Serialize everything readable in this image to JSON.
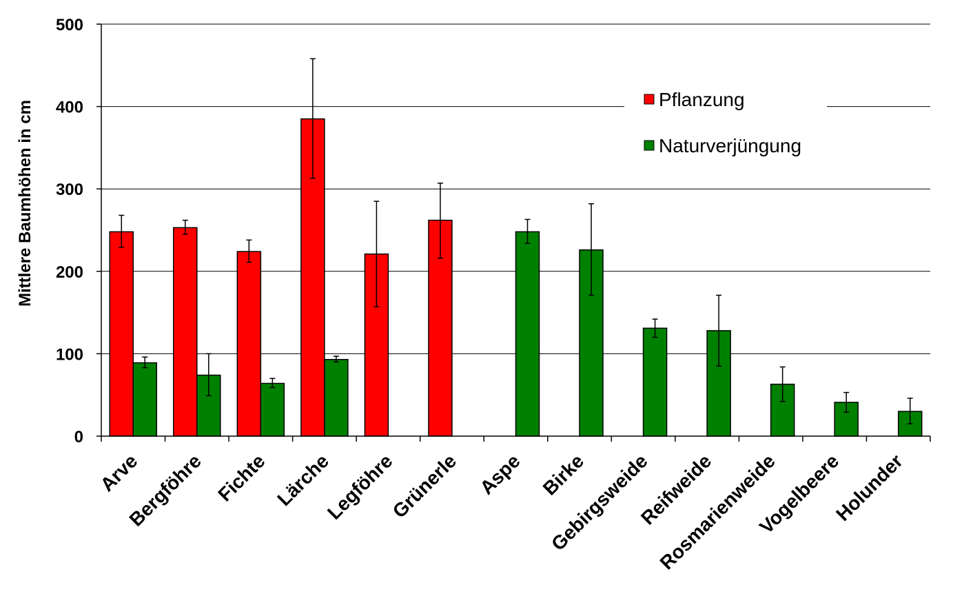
{
  "chart_data": {
    "type": "bar",
    "title": "",
    "xlabel": "",
    "ylabel": "Mittlere Baumhöhen in cm",
    "ylim": [
      0,
      500
    ],
    "yticks": [
      0,
      100,
      200,
      300,
      400,
      500
    ],
    "grid": true,
    "legend_position": "top-right",
    "categories": [
      "Arve",
      "Bergföhre",
      "Fichte",
      "Lärche",
      "Legföhre",
      "Grünerle",
      "Aspe",
      "Birke",
      "Gebirgsweide",
      "Reifweide",
      "Rosmarienweide",
      "Vogelbeere",
      "Holunder"
    ],
    "series": [
      {
        "name": "Pflanzung",
        "color": "#ff0000",
        "values": [
          248,
          253,
          224,
          385,
          221,
          262,
          null,
          null,
          null,
          null,
          null,
          null,
          null
        ],
        "error_low": [
          229,
          245,
          211,
          313,
          157,
          216,
          null,
          null,
          null,
          null,
          null,
          null,
          null
        ],
        "error_high": [
          268,
          262,
          238,
          458,
          285,
          307,
          null,
          null,
          null,
          null,
          null,
          null,
          null
        ]
      },
      {
        "name": "Naturverjüngung",
        "color": "#008000",
        "values": [
          89,
          74,
          64,
          93,
          null,
          null,
          248,
          226,
          131,
          128,
          63,
          41,
          30
        ],
        "error_low": [
          83,
          49,
          59,
          90,
          null,
          null,
          234,
          171,
          120,
          85,
          42,
          29,
          15
        ],
        "error_high": [
          96,
          100,
          70,
          97,
          null,
          null,
          263,
          282,
          142,
          171,
          84,
          53,
          46
        ]
      }
    ]
  }
}
